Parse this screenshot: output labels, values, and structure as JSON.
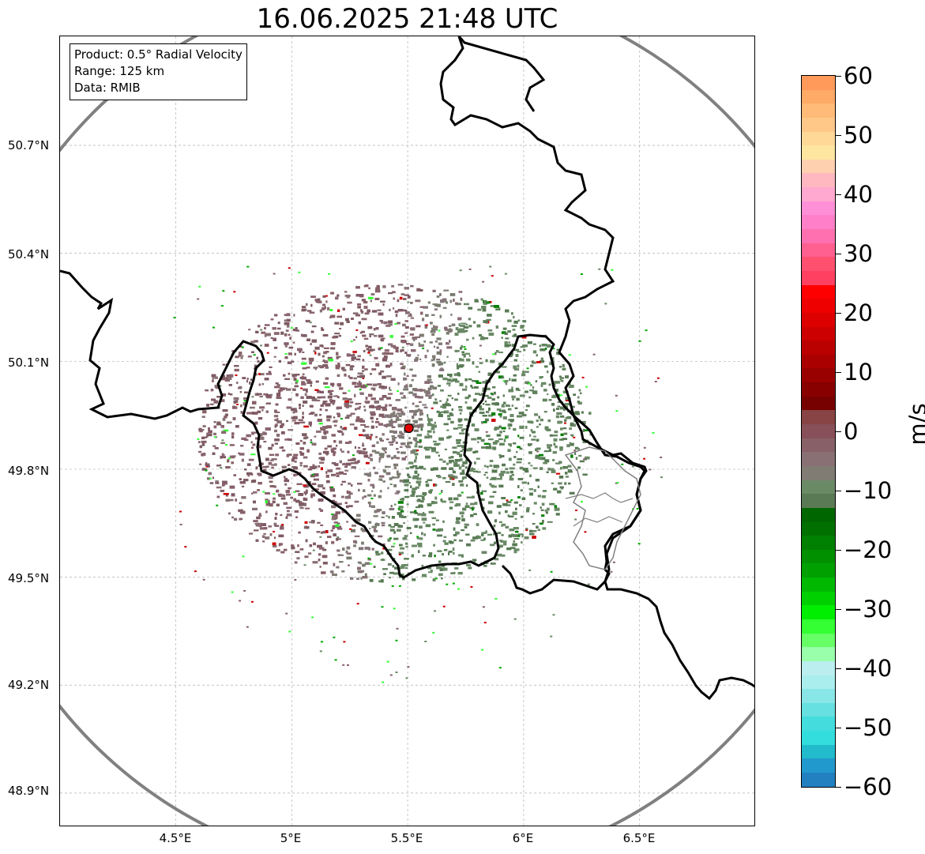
{
  "title": "16.06.2025 21:48 UTC",
  "info": {
    "product": "Product: 0.5° Radial Velocity",
    "range": "Range: 125 km",
    "data": "Data: RMIB"
  },
  "map": {
    "lon_ticks": [
      "4.5°E",
      "5°E",
      "5.5°E",
      "6°E",
      "6.5°E"
    ],
    "lon_values": [
      4.5,
      5.0,
      5.5,
      6.0,
      6.5
    ],
    "lat_ticks": [
      "50.7°N",
      "50.4°N",
      "50.1°N",
      "49.8°N",
      "49.5°N",
      "49.2°N",
      "48.9°N"
    ],
    "lat_values": [
      50.7,
      50.4,
      50.1,
      49.8,
      49.5,
      49.2,
      48.9
    ],
    "radar_site": {
      "lon": 5.505,
      "lat": 49.914
    },
    "range_ring_km": 125,
    "grid": true
  },
  "colorbar": {
    "unit": "m/s",
    "tick_labels": [
      "60",
      "50",
      "40",
      "30",
      "20",
      "10",
      "0",
      "−10",
      "−20",
      "−30",
      "−40",
      "−50",
      "−60"
    ],
    "tick_values": [
      60,
      50,
      40,
      30,
      20,
      10,
      0,
      -10,
      -20,
      -30,
      -40,
      -50,
      -60
    ],
    "min": -60,
    "max": 60,
    "colors_top_to_bottom": [
      "#ff9a5a",
      "#ffaa66",
      "#ffbb77",
      "#ffc888",
      "#ffd898",
      "#ffe6a0",
      "#ffd0b0",
      "#ffb8c0",
      "#ffa8d0",
      "#ff90d8",
      "#ff80c8",
      "#ff70b0",
      "#ff6090",
      "#ff5070",
      "#ff4060",
      "#ff0000",
      "#ee0000",
      "#dd0000",
      "#cc0000",
      "#bb0000",
      "#aa0000",
      "#990000",
      "#880000",
      "#770000",
      "#884444",
      "#885058",
      "#886068",
      "#887074",
      "#807c74",
      "#6a8a66",
      "#5a7a56",
      "#006600",
      "#007000",
      "#008000",
      "#009000",
      "#00a000",
      "#00b800",
      "#00d000",
      "#00ee00",
      "#33ff33",
      "#66ff66",
      "#99ffaa",
      "#bbeeee",
      "#aaeeee",
      "#88e6e6",
      "#66e0e0",
      "#44dcdc",
      "#33dddd",
      "#22bbcc",
      "#2299cc",
      "#2280c0"
    ]
  }
}
